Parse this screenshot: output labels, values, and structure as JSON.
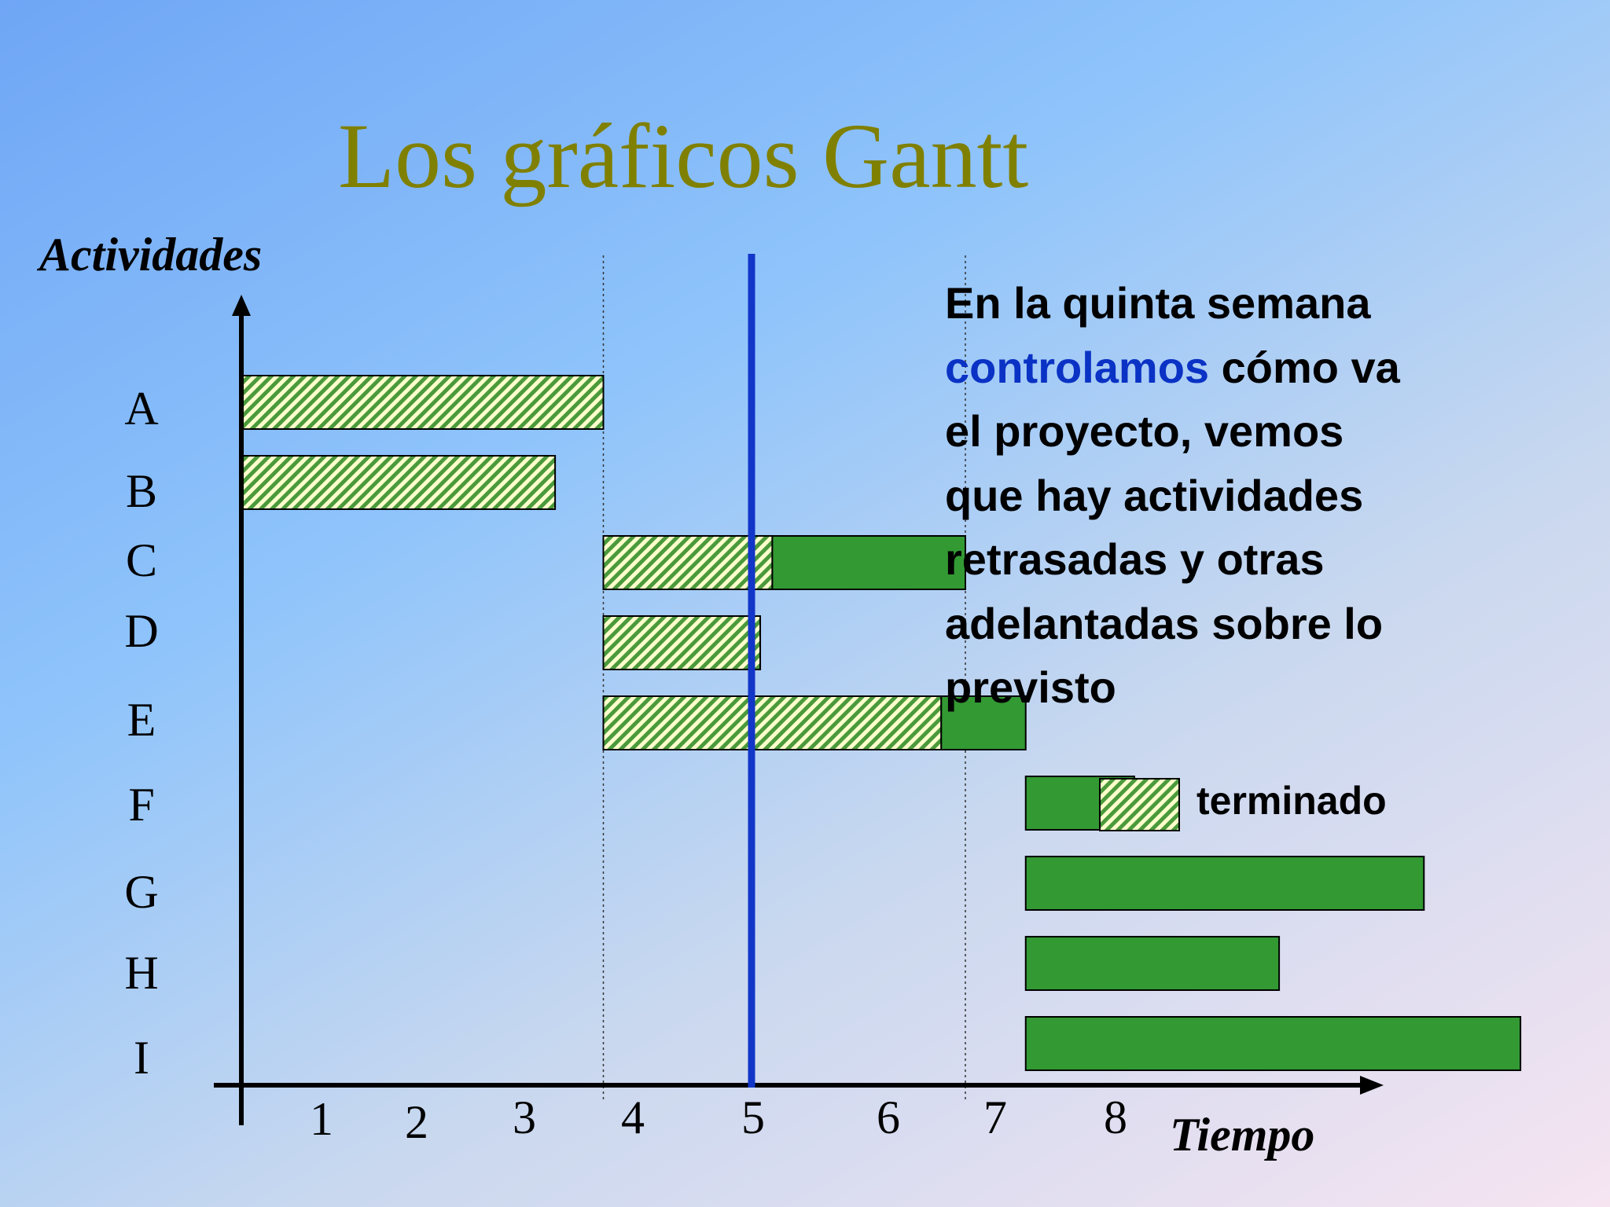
{
  "slide": {
    "title": "Los gráficos Gantt"
  },
  "note": {
    "part1": "En la quinta semana",
    "highlight": "controlamos",
    "part2": "cómo va el proyecto, vemos que hay actividades retrasadas y otras adelantadas sobre lo previsto"
  },
  "legend": {
    "completed_label": "terminado"
  },
  "colors": {
    "title": "#808000",
    "highlight": "#0a32c4",
    "current_week_line": "#1236c8",
    "pending_fill": "#339933",
    "hatch_stripe": "#4a9a3c",
    "hatch_background": "#ffffcc"
  },
  "chart_data": {
    "type": "gantt",
    "ylabel": "Actividades",
    "xlabel": "Tiempo",
    "x_ticks": [
      "1",
      "2",
      "3",
      "4",
      "5",
      "6",
      "7",
      "8"
    ],
    "xlim": [
      0,
      8.7
    ],
    "current_week": 5,
    "week_markers": [
      3,
      6
    ],
    "categories": [
      "A",
      "B",
      "C",
      "D",
      "E",
      "F",
      "G",
      "H",
      "I"
    ],
    "tasks": [
      {
        "activity": "A",
        "start": 0,
        "completed_end": 3,
        "end": 3
      },
      {
        "activity": "B",
        "start": 0,
        "completed_end": 2.6,
        "end": 2.6
      },
      {
        "activity": "C",
        "start": 3,
        "completed_end": 4.4,
        "end": 6
      },
      {
        "activity": "D",
        "start": 3,
        "completed_end": 4.3,
        "end": 4.3
      },
      {
        "activity": "E",
        "start": 3,
        "completed_end": 5.8,
        "end": 6.5
      },
      {
        "activity": "F",
        "start": 6.5,
        "completed_end": 6.5,
        "end": 7.4
      },
      {
        "activity": "G",
        "start": 6.5,
        "completed_end": 6.5,
        "end": 9.8
      },
      {
        "activity": "H",
        "start": 6.5,
        "completed_end": 6.5,
        "end": 8.6
      },
      {
        "activity": "I",
        "start": 6.5,
        "completed_end": 6.5,
        "end": 10.6
      }
    ],
    "legend": [
      {
        "label": "terminado",
        "pattern": "hatched"
      }
    ]
  }
}
